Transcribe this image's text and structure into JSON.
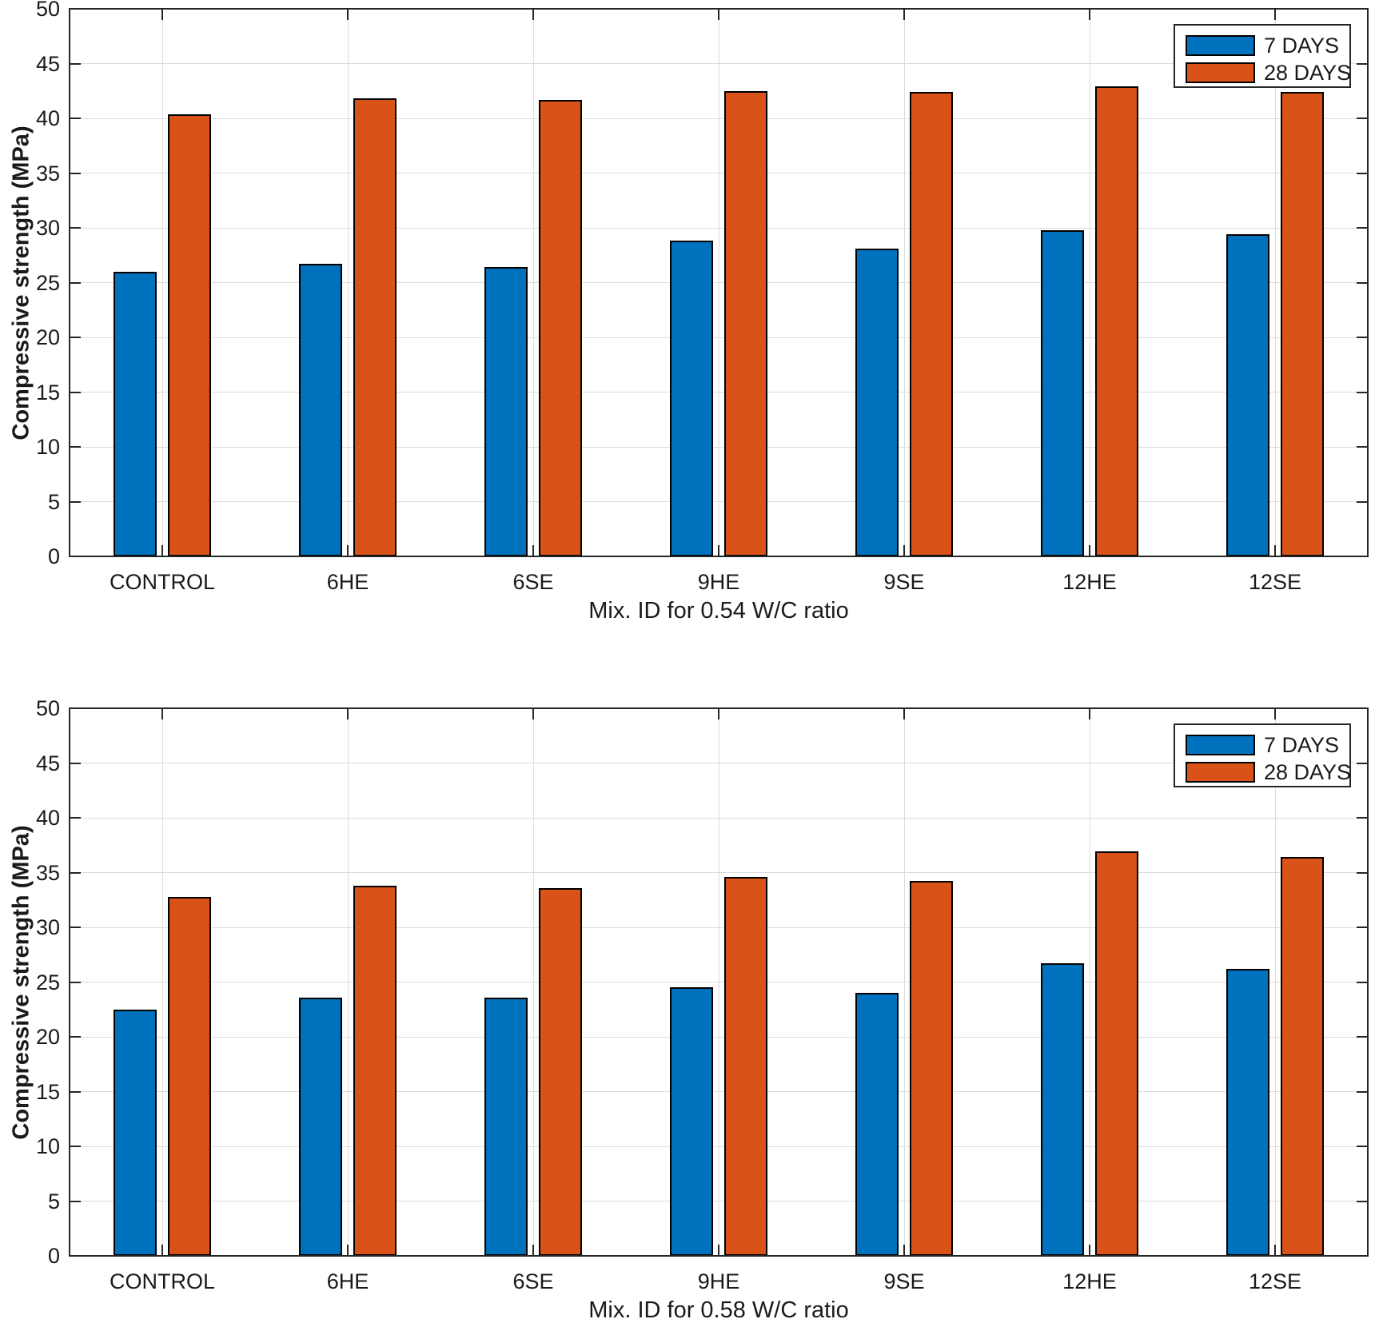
{
  "background": "#ffffff",
  "chart_data": [
    {
      "type": "bar",
      "title": "",
      "xlabel": "Mix. ID for 0.54 W/C ratio",
      "ylabel": "Compressive strength (MPa)",
      "categories": [
        "CONTROL",
        "6HE",
        "6SE",
        "9HE",
        "9SE",
        "12HE",
        "12SE"
      ],
      "series": [
        {
          "name": "7 DAYS",
          "color": "#0072BD",
          "values": [
            26.0,
            26.7,
            26.4,
            28.8,
            28.1,
            29.8,
            29.4
          ]
        },
        {
          "name": "28 DAYS",
          "color": "#D95319",
          "values": [
            40.4,
            41.8,
            41.7,
            42.5,
            42.4,
            42.9,
            42.4
          ]
        }
      ],
      "ylim": [
        0,
        50
      ],
      "yticks": [
        0,
        5,
        10,
        15,
        20,
        25,
        30,
        35,
        40,
        45,
        50
      ],
      "grid": true,
      "legend_position": "top-right"
    },
    {
      "type": "bar",
      "title": "",
      "xlabel": "Mix. ID for 0.58 W/C ratio",
      "ylabel": "Compressive strength (MPa)",
      "categories": [
        "CONTROL",
        "6HE",
        "6SE",
        "9HE",
        "9SE",
        "12HE",
        "12SE"
      ],
      "series": [
        {
          "name": "7 DAYS",
          "color": "#0072BD",
          "values": [
            22.5,
            23.6,
            23.6,
            24.5,
            24.0,
            26.7,
            26.2
          ]
        },
        {
          "name": "28 DAYS",
          "color": "#D95319",
          "values": [
            32.8,
            33.8,
            33.6,
            34.6,
            34.2,
            36.9,
            36.4
          ]
        }
      ],
      "ylim": [
        0,
        50
      ],
      "yticks": [
        0,
        5,
        10,
        15,
        20,
        25,
        30,
        35,
        40,
        45,
        50
      ],
      "grid": true,
      "legend_position": "top-right"
    }
  ]
}
